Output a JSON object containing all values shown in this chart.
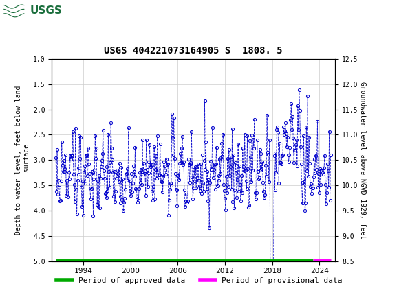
{
  "title": "USGS 404221073164905 S  1808. 5",
  "ylabel_left": "Depth to water level, feet below land\n surface",
  "ylabel_right": "Groundwater level above NGVD 1929, feet",
  "ylim_left": [
    5.0,
    1.0
  ],
  "ylim_right": [
    8.5,
    12.5
  ],
  "yticks_left": [
    1.0,
    1.5,
    2.0,
    2.5,
    3.0,
    3.5,
    4.0,
    4.5,
    5.0
  ],
  "yticks_right": [
    8.5,
    9.0,
    9.5,
    10.0,
    10.5,
    11.0,
    11.5,
    12.0,
    12.5
  ],
  "xlim": [
    1990.0,
    2026.0
  ],
  "xticks": [
    1994,
    2000,
    2006,
    2012,
    2018,
    2024
  ],
  "header_color": "#1a6e3c",
  "line_color": "#0000cc",
  "marker_color": "#0000cc",
  "marker_style": "o",
  "marker_size": 3,
  "line_style": "--",
  "approved_color": "#00aa00",
  "provisional_color": "#ff00ff",
  "background_color": "#ffffff",
  "grid_color": "#cccccc",
  "approved_x_start": 1990.5,
  "approved_x_end": 2023.2,
  "provisional_x_start": 2023.2,
  "provisional_x_end": 2025.5
}
